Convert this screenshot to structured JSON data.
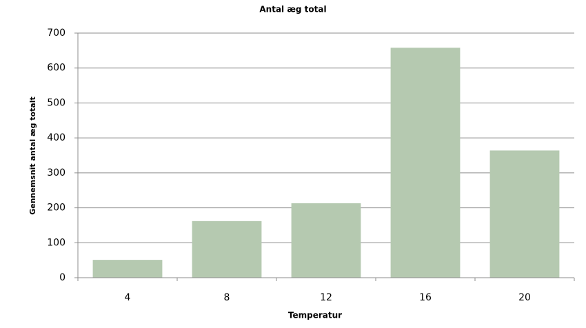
{
  "chart_data": {
    "type": "bar",
    "title": "Antal æg total",
    "x_label": "Temperatur",
    "y_label": "Gennemsnit antal æg totalt",
    "categories": [
      "4",
      "8",
      "12",
      "16",
      "20"
    ],
    "values": [
      51,
      162,
      213,
      658,
      364
    ],
    "color": "#b5c9b0",
    "ylim": [
      0,
      700
    ],
    "yticks": [
      0,
      100,
      200,
      300,
      400,
      500,
      600,
      700
    ],
    "grid": true
  }
}
